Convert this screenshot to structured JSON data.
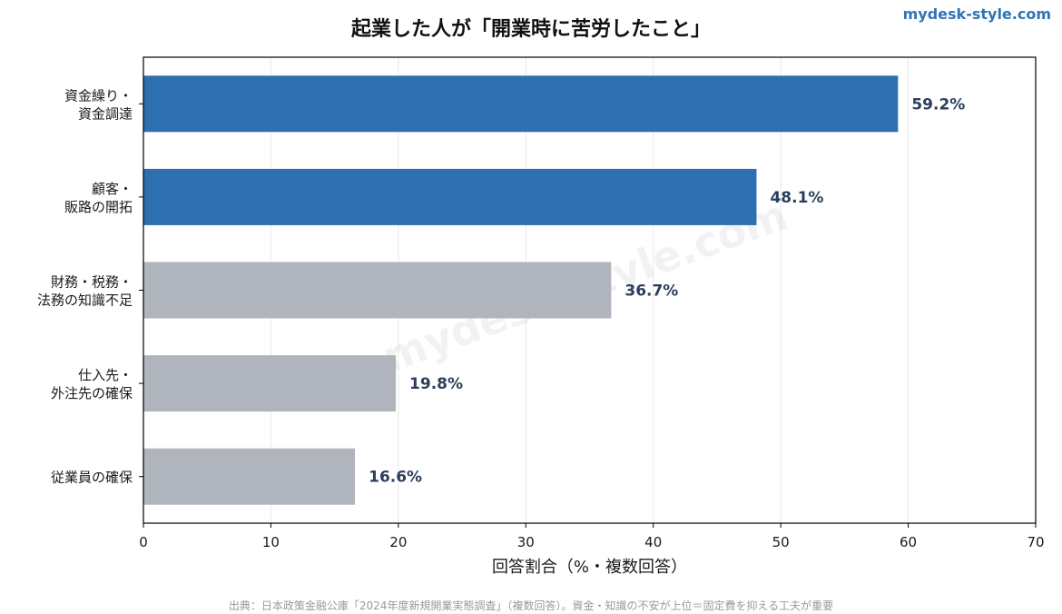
{
  "brand": "mydesk-style.com",
  "watermark": "mydesk-style.com",
  "source": "出典：日本政策金融公庫「2024年度新規開業実態調査」（複数回答）。資金・知識の不安が上位＝固定費を抑える工夫が重要",
  "colors": {
    "highlight": "#2e6fb0",
    "normal": "#b0b5bd",
    "label": "#2b3f5c"
  },
  "chart_data": {
    "type": "bar",
    "orientation": "horizontal",
    "title": "起業した人が「開業時に苦労したこと」",
    "xlabel": "回答割合（%・複数回答）",
    "ylabel": "",
    "xlim": [
      0,
      70
    ],
    "xticks": [
      0,
      10,
      20,
      30,
      40,
      50,
      60,
      70
    ],
    "grid": "vertical",
    "categories": [
      [
        "資金繰り・",
        "資金調達"
      ],
      [
        "顧客・",
        "販路の開拓"
      ],
      [
        "財務・税務・",
        "法務の知識不足"
      ],
      [
        "仕入先・",
        "外注先の確保"
      ],
      [
        "従業員の確保"
      ]
    ],
    "values": [
      59.2,
      48.1,
      36.7,
      19.8,
      16.6
    ],
    "value_labels": [
      "59.2%",
      "48.1%",
      "36.7%",
      "19.8%",
      "16.6%"
    ],
    "highlighted": [
      true,
      true,
      false,
      false,
      false
    ]
  }
}
